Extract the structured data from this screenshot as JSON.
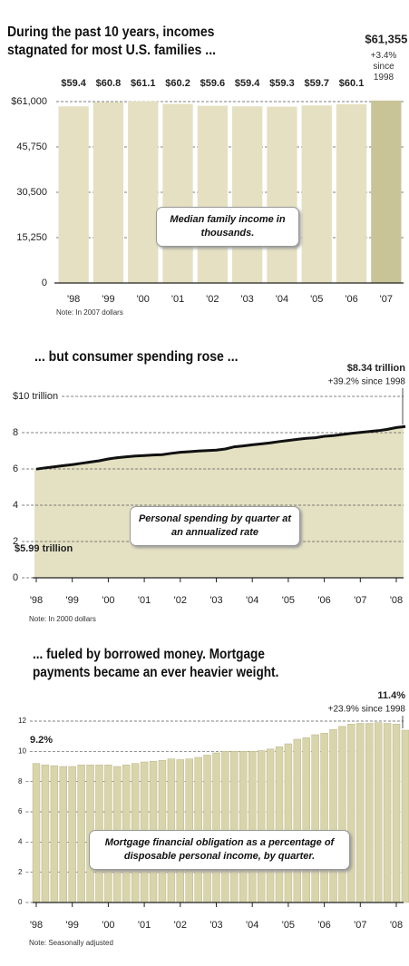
{
  "chart_data": [
    {
      "type": "bar",
      "title": "During the past 10 years, incomes stagnated for most U.S. families ...",
      "categories": [
        "'98",
        "'99",
        "'00",
        "'01",
        "'02",
        "'03",
        "'04",
        "'05",
        "'06",
        "'07"
      ],
      "values": [
        59400,
        60800,
        61100,
        60200,
        59600,
        59400,
        59300,
        59700,
        60100,
        61355
      ],
      "value_labels": [
        "$59.4",
        "$60.8",
        "$61.1",
        "$60.2",
        "$59.6",
        "$59.4",
        "$59.3",
        "$59.7",
        "$60.1",
        "$61,355"
      ],
      "colors": [
        "#e4e0c1",
        "#e4e0c1",
        "#e4e0c1",
        "#e4e0c1",
        "#e4e0c1",
        "#e4e0c1",
        "#e4e0c1",
        "#e4e0c1",
        "#e4e0c1",
        "#c9c497"
      ],
      "ylim": [
        0,
        61000
      ],
      "yticks": [
        0,
        {
          "value": 15250,
          "label": "15,250"
        },
        {
          "value": 30500,
          "label": "30,500"
        },
        {
          "value": 45750,
          "label": "45,750"
        },
        {
          "value": 61000,
          "label": "$61,000"
        }
      ],
      "grid": true,
      "change_label": "+3.4% since 1998",
      "annotation": "Median family income in thousands.",
      "note": "Note: In 2007 dollars"
    },
    {
      "type": "area",
      "title": "... but consumer spending rose ...",
      "categories": [
        "'98",
        null,
        null,
        null,
        "'99",
        null,
        null,
        null,
        "'00",
        null,
        null,
        null,
        "'01",
        null,
        null,
        null,
        "'02",
        null,
        null,
        null,
        "'03",
        null,
        null,
        null,
        "'04",
        null,
        null,
        null,
        "'05",
        null,
        null,
        null,
        "'06",
        null,
        null,
        null,
        "'07",
        null,
        null,
        null,
        "'08",
        null
      ],
      "values": [
        5.99,
        6.06,
        6.12,
        6.18,
        6.24,
        6.31,
        6.38,
        6.45,
        6.55,
        6.62,
        6.67,
        6.71,
        6.74,
        6.77,
        6.79,
        6.86,
        6.92,
        6.95,
        6.99,
        7.01,
        7.04,
        7.1,
        7.22,
        7.27,
        7.33,
        7.38,
        7.44,
        7.51,
        7.57,
        7.63,
        7.69,
        7.72,
        7.8,
        7.84,
        7.9,
        7.96,
        8.01,
        8.06,
        8.11,
        8.18,
        8.28,
        8.34
      ],
      "value_labels": [
        "$5.99 trillion",
        null,
        null,
        null,
        null,
        null,
        null,
        null,
        null,
        null,
        null,
        null,
        null,
        null,
        null,
        null,
        null,
        null,
        null,
        null,
        null,
        null,
        null,
        null,
        null,
        null,
        null,
        null,
        null,
        null,
        null,
        null,
        null,
        null,
        null,
        null,
        null,
        null,
        null,
        null,
        null,
        "$8.34 trillion"
      ],
      "color": "#e4e1c3",
      "line_color": "#111111",
      "ylim": [
        0,
        10
      ],
      "yticks": [
        0,
        2,
        4,
        6,
        8,
        {
          "value": 10,
          "label": "$10 trillion"
        }
      ],
      "grid": true,
      "change_label": "+39.2% since 1998",
      "annotation": "Personal spending by quarter at an annualized rate",
      "note": "Note: In 2000 dollars"
    },
    {
      "type": "bar",
      "title": "... fueled by borrowed money. Mortgage payments became an ever heavier weight.",
      "categories": [
        "'98",
        null,
        null,
        null,
        "'99",
        null,
        null,
        null,
        "'00",
        null,
        null,
        null,
        "'01",
        null,
        null,
        null,
        "'02",
        null,
        null,
        null,
        "'03",
        null,
        null,
        null,
        "'04",
        null,
        null,
        null,
        "'05",
        null,
        null,
        null,
        "'06",
        null,
        null,
        null,
        "'07",
        null,
        null,
        null,
        "'08",
        null
      ],
      "values": [
        9.2,
        9.1,
        9.05,
        9.0,
        9.0,
        9.1,
        9.1,
        9.1,
        9.1,
        9.0,
        9.1,
        9.2,
        9.3,
        9.35,
        9.4,
        9.5,
        9.45,
        9.5,
        9.6,
        9.75,
        9.9,
        10.0,
        10.0,
        10.0,
        10.0,
        10.05,
        10.15,
        10.3,
        10.5,
        10.8,
        10.9,
        11.1,
        11.2,
        11.45,
        11.65,
        11.8,
        11.85,
        11.85,
        11.9,
        11.85,
        11.8,
        11.4
      ],
      "value_labels": [
        "9.2%",
        null,
        null,
        null,
        null,
        null,
        null,
        null,
        null,
        null,
        null,
        null,
        null,
        null,
        null,
        null,
        null,
        null,
        null,
        null,
        null,
        null,
        null,
        null,
        null,
        null,
        null,
        null,
        null,
        null,
        null,
        null,
        null,
        null,
        null,
        null,
        null,
        null,
        null,
        null,
        null,
        "11.4%"
      ],
      "color": "#d9d5ab",
      "ylim": [
        0,
        12
      ],
      "yticks": [
        0,
        2,
        4,
        6,
        8,
        10,
        12
      ],
      "grid": true,
      "change_label": "+23.9% since 1998",
      "annotation": "Mortgage financial obligation as a percentage of disposable personal income, by quarter.",
      "note": "Note: Seasonally adjusted"
    }
  ]
}
